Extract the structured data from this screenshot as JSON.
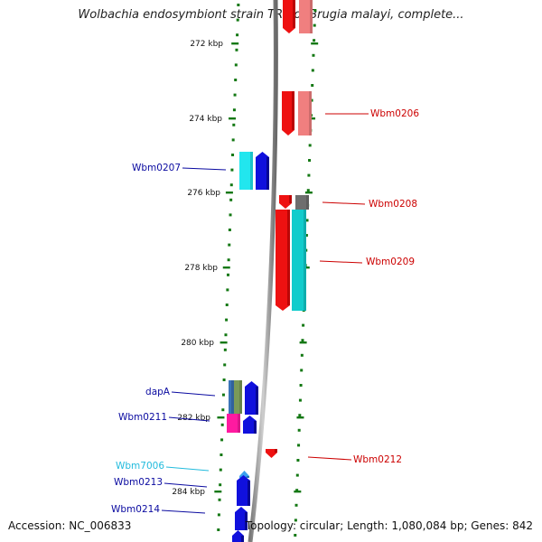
{
  "title": "Wolbachia endosymbiont strain TRS of Brugia malayi, complete...",
  "ticks": [
    "272 kbp",
    "274 kbp",
    "276 kbp",
    "278 kbp",
    "280 kbp",
    "282 kbp",
    "284 kbp"
  ],
  "genes_right": [
    "Wbm0206",
    "Wbm0208",
    "Wbm0209",
    "Wbm0212"
  ],
  "genes_left": [
    "Wbm0207",
    "dapA",
    "Wbm0211",
    "Wbm7006",
    "Wbm0213",
    "Wbm0214"
  ],
  "footer": {
    "accession": "Accession: NC_006833",
    "topology": "Topology: circular; Length: 1,080,084 bp; Genes: 842"
  },
  "colors": {
    "forward_gene": "#1010dd",
    "reverse_gene": "#ee1111",
    "cds_light_red": "#f07f7f",
    "cds_cyan": "#11cccc",
    "backbone": "#888888",
    "tick_green": "#137813",
    "label_blue": "#0a0aa0",
    "label_red": "#cc0000",
    "label_lightblue": "#22bbdd"
  }
}
